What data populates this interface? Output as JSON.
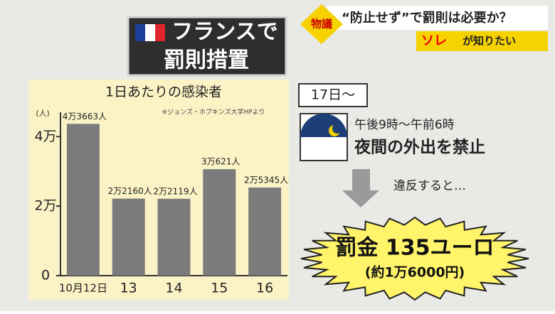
{
  "chart_data": {
    "type": "bar",
    "title": "1日あたりの感染者",
    "y_unit": "(人)",
    "source": "※ジョンズ・ホプキンズ大学HPより",
    "categories": [
      "10月12日",
      "13",
      "14",
      "15",
      "16"
    ],
    "values": [
      43663,
      22160,
      22119,
      30621,
      25345
    ],
    "value_labels": [
      "4万3663人",
      "2万2160人",
      "2万2119人",
      "3万621人",
      "2万5345人"
    ],
    "color": "#7b7b7b",
    "ylim": [
      0,
      47000
    ],
    "yticks": [
      0,
      {
        "value": 20000,
        "label": "2万"
      },
      {
        "value": 40000,
        "label": "4万"
      }
    ]
  },
  "headline": {
    "line1": "フランスで",
    "line2": "罰則措置"
  },
  "banner": {
    "tag": "物議",
    "question": "“防止せず”で罰則は必要か？",
    "show_a": "ソレ",
    "show_b": "が知りたい"
  },
  "panel": {
    "date": "17日〜",
    "hours": "午後9時〜午前6時",
    "rule": "夜間の外出を禁止",
    "if_violated": "違反すると…",
    "fine": "罰金 135ユーロ",
    "fine_yen": "(約1万6000円)"
  }
}
